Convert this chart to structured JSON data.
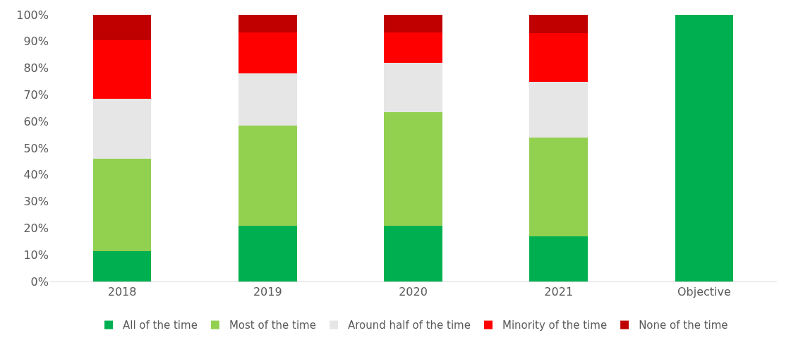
{
  "chart_data": {
    "type": "bar",
    "stacked": true,
    "categories": [
      "2018",
      "2019",
      "2020",
      "2021",
      "Objective"
    ],
    "series": [
      {
        "name": "All of the time",
        "color": "#00b050",
        "values": [
          11.5,
          21,
          21,
          17,
          100
        ]
      },
      {
        "name": "Most of the time",
        "color": "#92d050",
        "values": [
          34.5,
          37.5,
          42.5,
          37,
          null
        ]
      },
      {
        "name": "Around half of the time",
        "color": "#e7e6e6",
        "values": [
          22.5,
          19.5,
          18.5,
          21,
          null
        ]
      },
      {
        "name": "Minority of the time",
        "color": "#ff0000",
        "values": [
          22,
          15.5,
          11.5,
          18,
          null
        ]
      },
      {
        "name": "None of the time",
        "color": "#c00000",
        "values": [
          9.5,
          6.5,
          6.5,
          7,
          null
        ]
      }
    ],
    "ylim": [
      0,
      100
    ],
    "yticks": [
      {
        "value": 0,
        "label": "0%"
      },
      {
        "value": 10,
        "label": "10%"
      },
      {
        "value": 20,
        "label": "20%"
      },
      {
        "value": 30,
        "label": "30%"
      },
      {
        "value": 40,
        "label": "40%"
      },
      {
        "value": 50,
        "label": "50%"
      },
      {
        "value": 60,
        "label": "60%"
      },
      {
        "value": 70,
        "label": "70%"
      },
      {
        "value": 80,
        "label": "80%"
      },
      {
        "value": 90,
        "label": "90%"
      },
      {
        "value": 100,
        "label": "100%"
      }
    ],
    "legend": "bottom"
  }
}
